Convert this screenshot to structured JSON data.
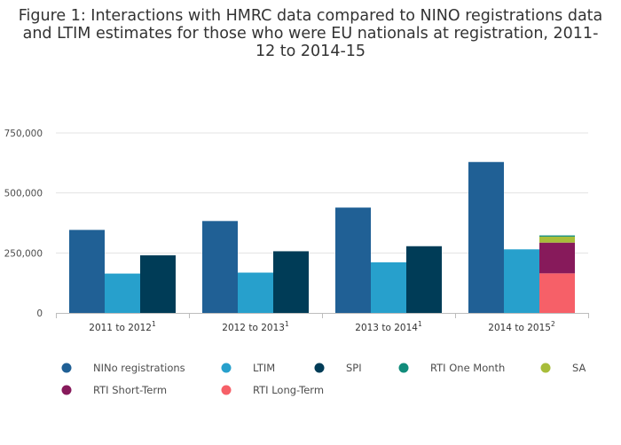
{
  "chart_data": {
    "type": "bar",
    "title": "Figure 1: Interactions with HMRC data compared to NINO registrations data and LTIM estimates for those who were EU nationals at registration, 2011-12 to 2014-15",
    "categories": [
      {
        "label": "2011 to 2012",
        "sup": "1"
      },
      {
        "label": "2012 to 2013",
        "sup": "1"
      },
      {
        "label": "2013 to 2014",
        "sup": "1"
      },
      {
        "label": "2014 to 2015",
        "sup": "2"
      }
    ],
    "series": [
      {
        "name": "NINo registrations",
        "color": "#206095",
        "stack": "nino",
        "values": [
          346000,
          383000,
          439000,
          629000
        ]
      },
      {
        "name": "LTIM",
        "color": "#27a0cc",
        "stack": "ltim",
        "values": [
          164000,
          168000,
          211000,
          265000
        ]
      },
      {
        "name": "SPI",
        "color": "#003c57",
        "stack": "hmrc",
        "values": [
          240000,
          257000,
          278000,
          null
        ]
      },
      {
        "name": "RTI One Month",
        "color": "#118c7b",
        "stack": "hmrc",
        "values": [
          null,
          null,
          null,
          5000
        ]
      },
      {
        "name": "SA",
        "color": "#a8bd3a",
        "stack": "hmrc",
        "values": [
          null,
          null,
          null,
          25000
        ]
      },
      {
        "name": "RTI Short-Term",
        "color": "#871a5b",
        "stack": "hmrc",
        "values": [
          null,
          null,
          null,
          128000
        ]
      },
      {
        "name": "RTI Long-Term",
        "color": "#f66068",
        "stack": "hmrc",
        "values": [
          null,
          null,
          null,
          165000
        ]
      }
    ],
    "stack_order_bottom_up": [
      "RTI Long-Term",
      "RTI Short-Term",
      "SA",
      "RTI One Month"
    ],
    "ylim": [
      0,
      750000
    ],
    "yticks": [
      {
        "value": 0,
        "label": "0"
      },
      {
        "value": 250000,
        "label": "250,000"
      },
      {
        "value": 500000,
        "label": "500,000"
      },
      {
        "value": 750000,
        "label": "750,000"
      }
    ],
    "grid": true,
    "legend_position": "bottom"
  }
}
